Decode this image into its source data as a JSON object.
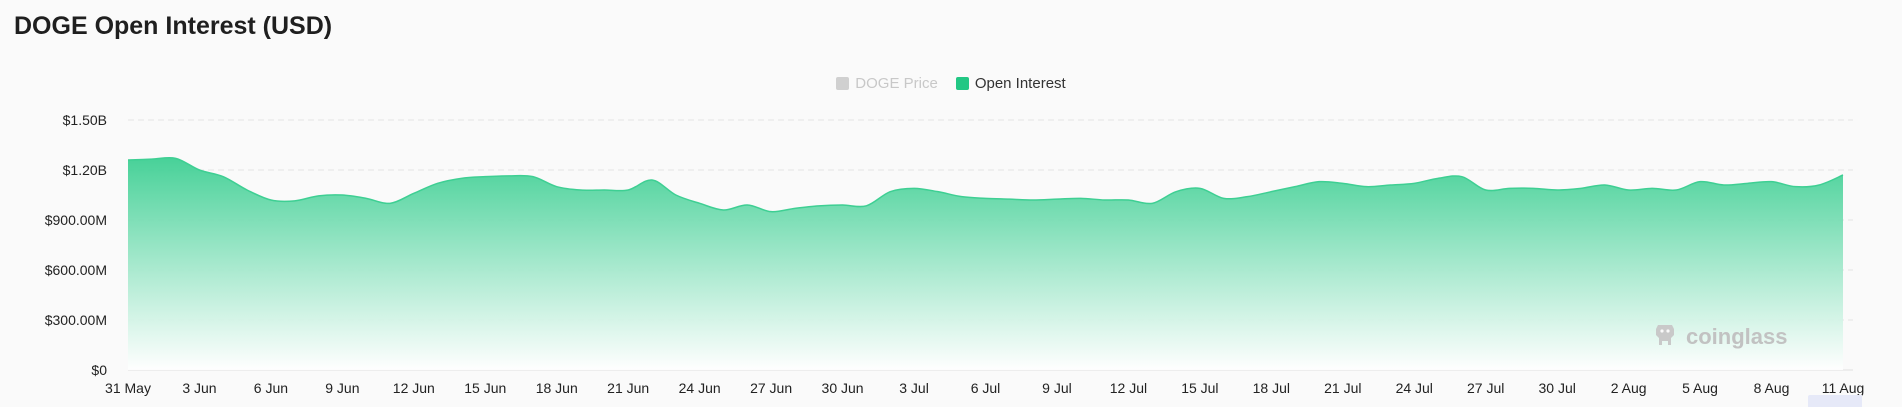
{
  "title": "DOGE Open Interest (USD)",
  "legend": [
    {
      "label": "DOGE Price",
      "color": "#c8c8c8",
      "active": false
    },
    {
      "label": "Open Interest",
      "color": "#22c784",
      "active": true
    }
  ],
  "watermark": {
    "text": "coinglass",
    "icon": "coinglass-logo-icon"
  },
  "colors": {
    "area_top": "#3ecf93",
    "area_bottom": "#ffffff",
    "line": "#3ecf93",
    "grid": "#e6e6e6"
  },
  "chart_data": {
    "type": "area",
    "title": "DOGE Open Interest (USD)",
    "series": [
      {
        "name": "Open Interest",
        "x": [
          "31 May",
          "1 Jun",
          "2 Jun",
          "3 Jun",
          "4 Jun",
          "5 Jun",
          "6 Jun",
          "7 Jun",
          "8 Jun",
          "9 Jun",
          "10 Jun",
          "11 Jun",
          "12 Jun",
          "13 Jun",
          "14 Jun",
          "15 Jun",
          "16 Jun",
          "17 Jun",
          "18 Jun",
          "19 Jun",
          "20 Jun",
          "21 Jun",
          "22 Jun",
          "23 Jun",
          "24 Jun",
          "25 Jun",
          "26 Jun",
          "27 Jun",
          "28 Jun",
          "29 Jun",
          "30 Jun",
          "1 Jul",
          "2 Jul",
          "3 Jul",
          "4 Jul",
          "5 Jul",
          "6 Jul",
          "7 Jul",
          "8 Jul",
          "9 Jul",
          "10 Jul",
          "11 Jul",
          "12 Jul",
          "13 Jul",
          "14 Jul",
          "15 Jul",
          "16 Jul",
          "17 Jul",
          "18 Jul",
          "19 Jul",
          "20 Jul",
          "21 Jul",
          "22 Jul",
          "23 Jul",
          "24 Jul",
          "25 Jul",
          "26 Jul",
          "27 Jul",
          "28 Jul",
          "29 Jul",
          "30 Jul",
          "31 Jul",
          "1 Aug",
          "2 Aug",
          "3 Aug",
          "4 Aug",
          "5 Aug",
          "6 Aug",
          "7 Aug",
          "8 Aug",
          "9 Aug",
          "10 Aug",
          "11 Aug"
        ],
        "values": [
          1.26,
          1.265,
          1.27,
          1.2,
          1.16,
          1.08,
          1.02,
          1.015,
          1.045,
          1.05,
          1.03,
          1.0,
          1.06,
          1.12,
          1.15,
          1.16,
          1.165,
          1.16,
          1.1,
          1.08,
          1.08,
          1.08,
          1.14,
          1.05,
          1.0,
          0.96,
          0.99,
          0.95,
          0.97,
          0.985,
          0.99,
          0.985,
          1.07,
          1.09,
          1.07,
          1.04,
          1.03,
          1.025,
          1.02,
          1.025,
          1.03,
          1.02,
          1.02,
          1.0,
          1.07,
          1.09,
          1.03,
          1.04,
          1.07,
          1.1,
          1.13,
          1.12,
          1.1,
          1.11,
          1.12,
          1.15,
          1.16,
          1.08,
          1.09,
          1.09,
          1.08,
          1.09,
          1.11,
          1.08,
          1.09,
          1.08,
          1.13,
          1.11,
          1.12,
          1.13,
          1.1,
          1.11,
          1.17
        ]
      }
    ],
    "x_ticks": [
      "31 May",
      "3 Jun",
      "6 Jun",
      "9 Jun",
      "12 Jun",
      "15 Jun",
      "18 Jun",
      "21 Jun",
      "24 Jun",
      "27 Jun",
      "30 Jun",
      "3 Jul",
      "6 Jul",
      "9 Jul",
      "12 Jul",
      "15 Jul",
      "18 Jul",
      "21 Jul",
      "24 Jul",
      "27 Jul",
      "30 Jul",
      "2 Aug",
      "5 Aug",
      "8 Aug",
      "11 Aug"
    ],
    "y_ticks": [
      {
        "value": 0,
        "label": "$0"
      },
      {
        "value": 0.3,
        "label": "$300.00M"
      },
      {
        "value": 0.6,
        "label": "$600.00M"
      },
      {
        "value": 0.9,
        "label": "$900.00M"
      },
      {
        "value": 1.2,
        "label": "$1.20B"
      },
      {
        "value": 1.5,
        "label": "$1.50B"
      }
    ],
    "y_unit": "billion USD",
    "ylim": [
      0,
      1.5
    ],
    "grid": true,
    "legend_position": "top-center"
  }
}
